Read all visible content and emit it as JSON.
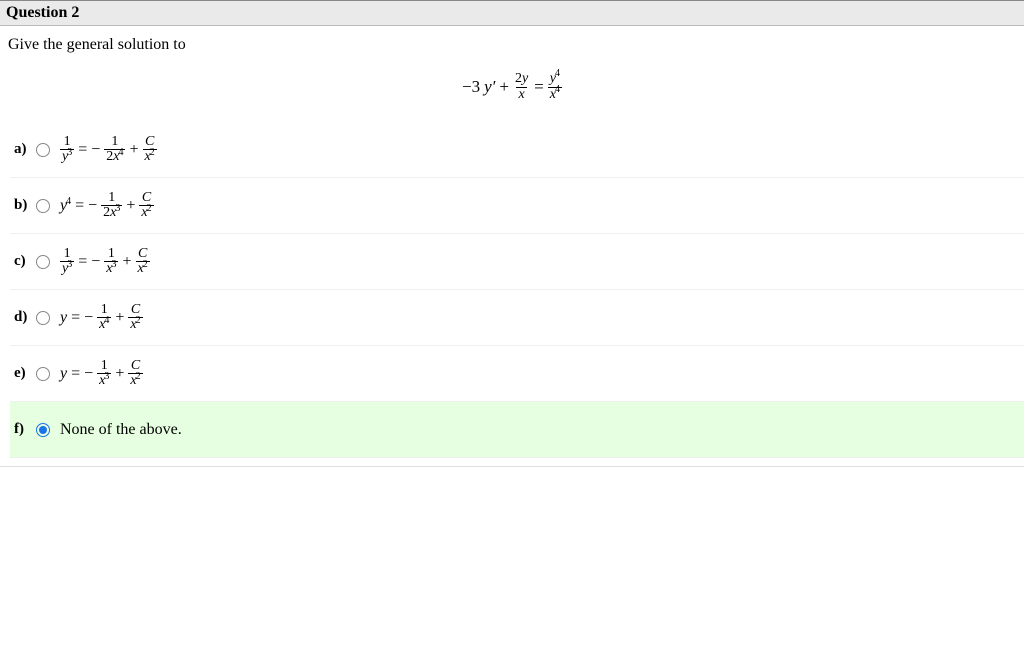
{
  "question": {
    "header": "Question 2",
    "prompt": "Give the general solution to"
  },
  "equation": {
    "prefix": "−3",
    "y_prime": "y′",
    "plus": "+",
    "frac1_num_coeff": "2",
    "frac1_num_var": "y",
    "frac1_den": "x",
    "equals": "=",
    "frac2_num_var": "y",
    "frac2_num_exp": "4",
    "frac2_den_var": "x",
    "frac2_den_exp": "4"
  },
  "options": {
    "a": {
      "label": "a)",
      "lhs_num": "1",
      "lhs_den_var": "y",
      "lhs_den_exp": "3",
      "eq": "= −",
      "mid_num": "1",
      "mid_den_coeff": "2",
      "mid_den_var": "x",
      "mid_den_exp": "4",
      "plus": "+",
      "rhs_num": "C",
      "rhs_den_var": "x",
      "rhs_den_exp": "2"
    },
    "b": {
      "label": "b)",
      "lhs_var": "y",
      "lhs_exp": "4",
      "eq": "= −",
      "mid_num": "1",
      "mid_den_coeff": "2",
      "mid_den_var": "x",
      "mid_den_exp": "3",
      "plus": "+",
      "rhs_num": "C",
      "rhs_den_var": "x",
      "rhs_den_exp": "2"
    },
    "c": {
      "label": "c)",
      "lhs_num": "1",
      "lhs_den_var": "y",
      "lhs_den_exp": "3",
      "eq": "= −",
      "mid_num": "1",
      "mid_den_var": "x",
      "mid_den_exp": "3",
      "plus": "+",
      "rhs_num": "C",
      "rhs_den_var": "x",
      "rhs_den_exp": "2"
    },
    "d": {
      "label": "d)",
      "lhs_var": "y",
      "eq": "= −",
      "mid_num": "1",
      "mid_den_var": "x",
      "mid_den_exp": "4",
      "plus": "+",
      "rhs_num": "C",
      "rhs_den_var": "x",
      "rhs_den_exp": "2"
    },
    "e": {
      "label": "e)",
      "lhs_var": "y",
      "eq": "= −",
      "mid_num": "1",
      "mid_den_var": "x",
      "mid_den_exp": "3",
      "plus": "+",
      "rhs_num": "C",
      "rhs_den_var": "x",
      "rhs_den_exp": "2"
    },
    "f": {
      "label": "f)",
      "text": "None of the above."
    }
  },
  "selected": "f"
}
